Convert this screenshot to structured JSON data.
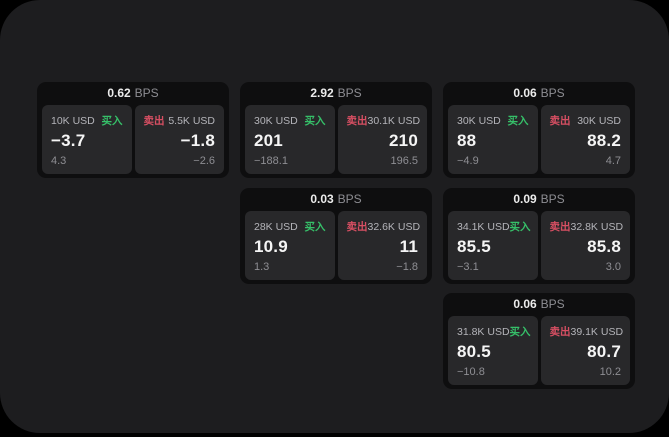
{
  "labels": {
    "bps": "BPS",
    "buy": "买入",
    "sell": "卖出"
  },
  "colors": {
    "page_background": "#000000",
    "surface_background": "#1d1d1f",
    "card_background": "#0e0e0f",
    "panel_background": "#28282a",
    "buy_green": "#36c069",
    "sell_red": "#d84f63",
    "text_primary": "#f5f5f5",
    "text_secondary": "#b4b4b9",
    "text_dim": "#8e8e93"
  },
  "cards": [
    {
      "bps": "0.62",
      "buy": {
        "notional": "10K USD",
        "price": "−3.7",
        "delta": "4.3"
      },
      "sell": {
        "notional": "5.5K USD",
        "price": "−1.8",
        "delta": "−2.6"
      }
    },
    {
      "bps": "2.92",
      "buy": {
        "notional": "30K USD",
        "price": "201",
        "delta": "−188.1"
      },
      "sell": {
        "notional": "30.1K USD",
        "price": "210",
        "delta": "196.5"
      }
    },
    {
      "bps": "0.06",
      "buy": {
        "notional": "30K USD",
        "price": "88",
        "delta": "−4.9"
      },
      "sell": {
        "notional": "30K USD",
        "price": "88.2",
        "delta": "4.7"
      }
    },
    {
      "bps": "0.03",
      "buy": {
        "notional": "28K USD",
        "price": "10.9",
        "delta": "1.3"
      },
      "sell": {
        "notional": "32.6K USD",
        "price": "11",
        "delta": "−1.8"
      }
    },
    {
      "bps": "0.09",
      "buy": {
        "notional": "34.1K USD",
        "price": "85.5",
        "delta": "−3.1"
      },
      "sell": {
        "notional": "32.8K USD",
        "price": "85.8",
        "delta": "3.0"
      }
    },
    {
      "bps": "0.06",
      "buy": {
        "notional": "31.8K USD",
        "price": "80.5",
        "delta": "−10.8"
      },
      "sell": {
        "notional": "39.1K USD",
        "price": "80.7",
        "delta": "10.2"
      }
    }
  ]
}
